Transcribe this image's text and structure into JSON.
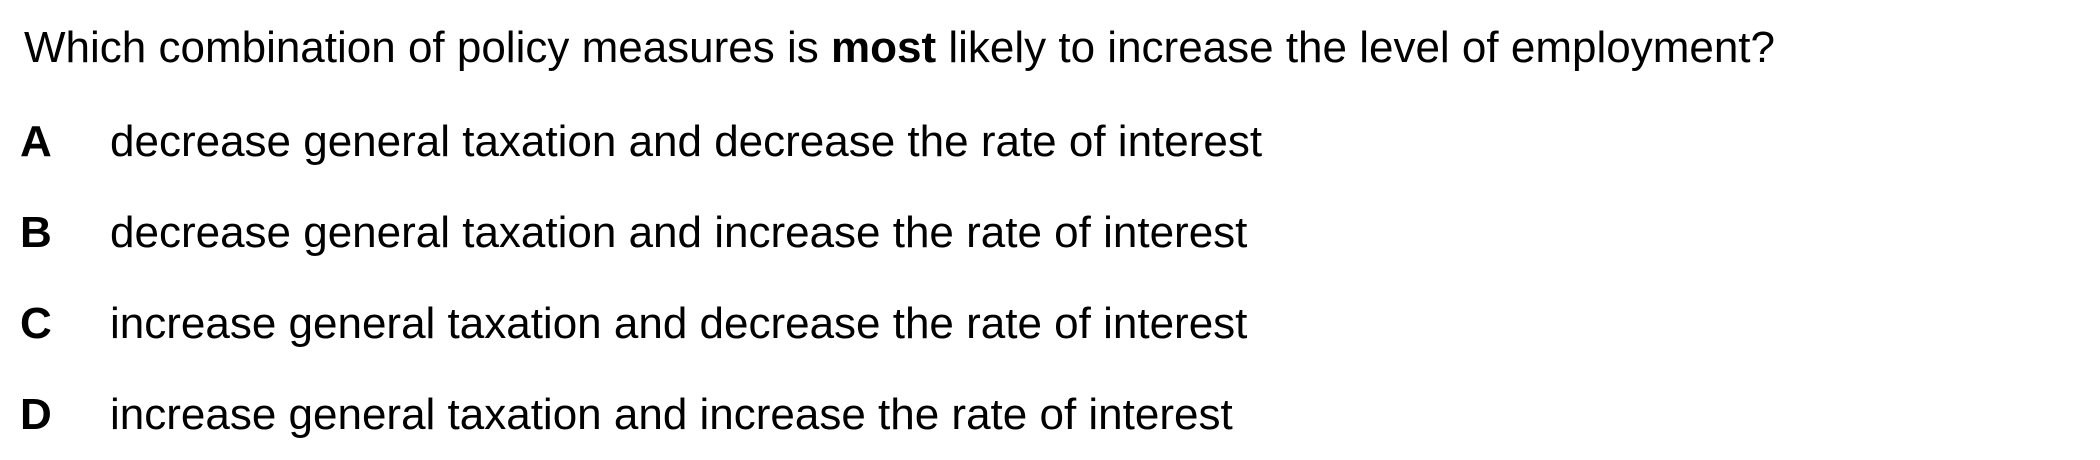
{
  "question": {
    "before": "Which combination of policy measures is ",
    "emphasis": "most",
    "after": " likely to increase the level of employment?"
  },
  "options": [
    {
      "letter": "A",
      "text": "decrease general taxation and decrease the rate of interest"
    },
    {
      "letter": "B",
      "text": "decrease general taxation and increase the rate of interest"
    },
    {
      "letter": "C",
      "text": "increase general taxation and decrease the rate of interest"
    },
    {
      "letter": "D",
      "text": "increase general taxation and increase the rate of interest"
    }
  ]
}
